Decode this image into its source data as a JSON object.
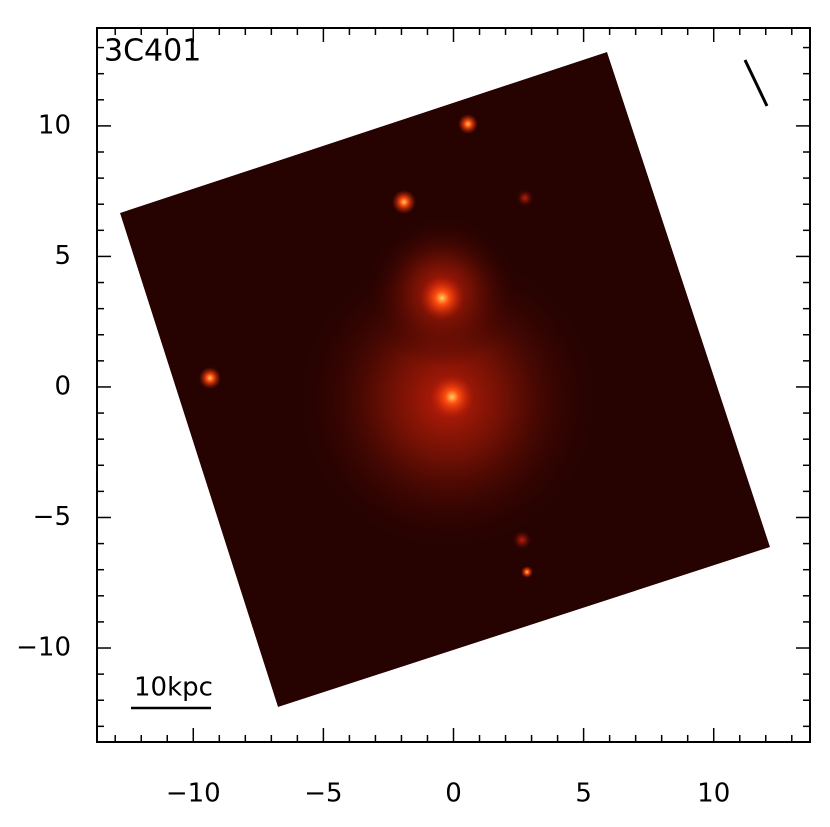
{
  "chart_data": {
    "type": "image",
    "title": "3C401",
    "annotation": "10kpc",
    "xlim": [
      -13.7,
      13.7
    ],
    "ylim": [
      -13.6,
      13.75
    ],
    "xticks": [
      {
        "value": -10,
        "label": "−10"
      },
      {
        "value": -5,
        "label": "−5"
      },
      0,
      5,
      10
    ],
    "yticks": [
      {
        "value": -10,
        "label": "−10"
      },
      {
        "value": -5,
        "label": "−5"
      },
      0,
      5,
      10
    ],
    "xminorticks": [
      -13,
      -12,
      -11,
      -9,
      -8,
      -7,
      -6,
      -4,
      -3,
      -2,
      -1,
      1,
      2,
      3,
      4,
      6,
      7,
      8,
      9,
      11,
      12,
      13
    ],
    "yminorticks": [
      -13,
      -12,
      -11,
      -9,
      -8,
      -7,
      -6,
      -4,
      -3,
      -2,
      -1,
      1,
      2,
      3,
      4,
      6,
      7,
      8,
      9,
      11,
      12,
      13
    ]
  }
}
